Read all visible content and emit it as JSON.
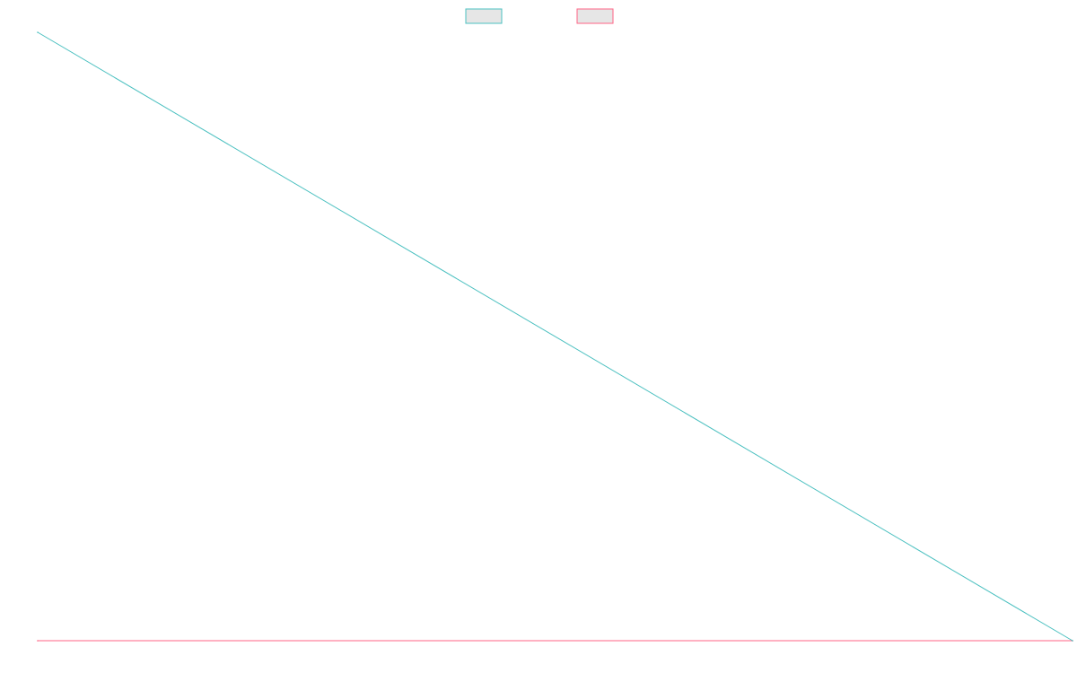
{
  "chart_data": {
    "type": "line",
    "title": "",
    "xlabel": "",
    "ylabel": "",
    "x": [
      0,
      1
    ],
    "series": [
      {
        "name": "",
        "values": [
          1,
          0
        ],
        "color": "#4bc0c0",
        "fill": "#e6e6e6"
      },
      {
        "name": "",
        "values": [
          0,
          0
        ],
        "color": "#ff6384",
        "fill": "#e6e6e6"
      }
    ],
    "xlim": [
      0,
      1
    ],
    "ylim": [
      0,
      1
    ],
    "grid": false,
    "legend": "top-center"
  }
}
